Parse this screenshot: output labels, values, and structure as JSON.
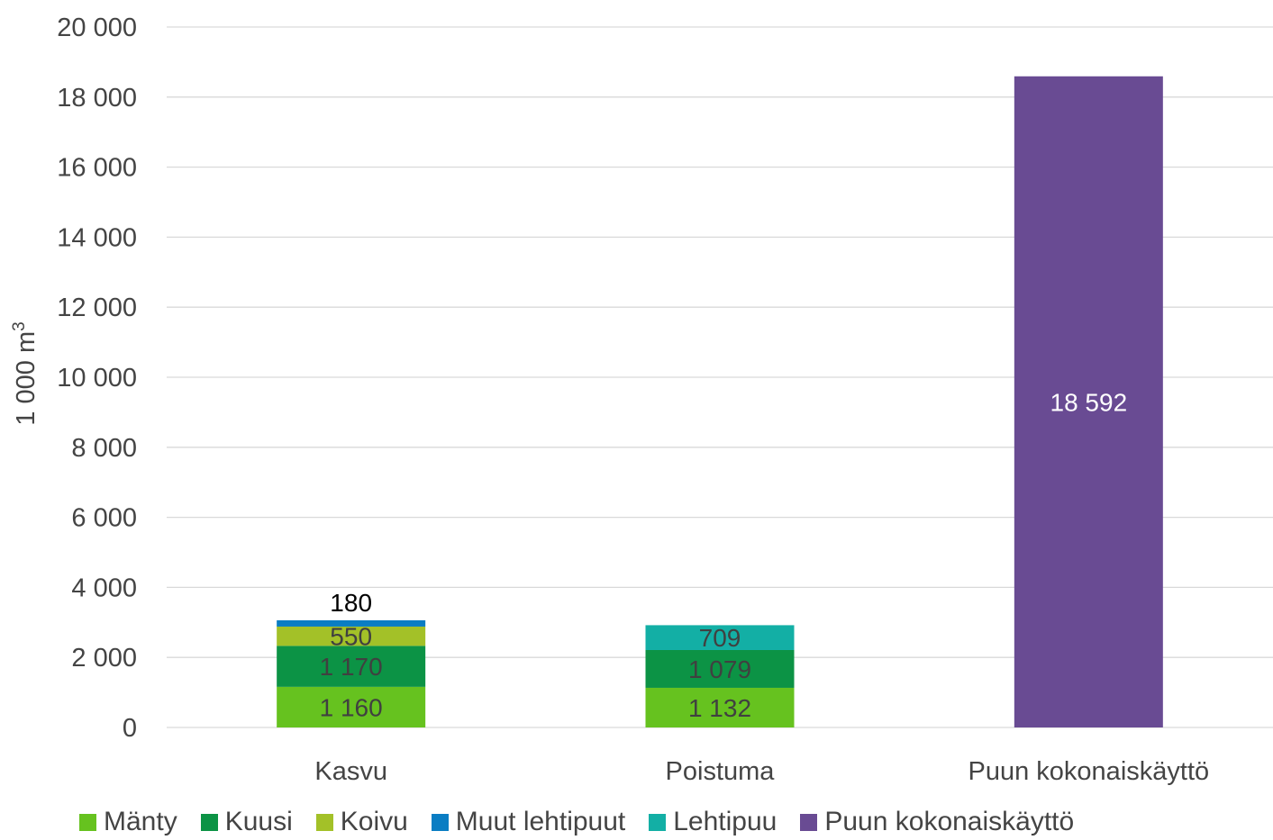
{
  "chart_data": {
    "type": "bar",
    "stacked": true,
    "ylabel": "1 000 m",
    "ylabel_superscript": "3",
    "ylim": [
      0,
      20000
    ],
    "y_ticks": [
      0,
      2000,
      4000,
      6000,
      8000,
      10000,
      12000,
      14000,
      16000,
      18000,
      20000
    ],
    "y_tick_labels": [
      "0",
      "2 000",
      "4 000",
      "6 000",
      "8 000",
      "10 000",
      "12 000",
      "14 000",
      "16 000",
      "18 000",
      "20 000"
    ],
    "grid": true,
    "legend_position": "bottom",
    "categories": [
      "Kasvu",
      "Poistuma",
      "Puun kokonaiskäyttö"
    ],
    "series": [
      {
        "name": "Mänty",
        "color": "#66c21f",
        "values": [
          1160,
          1132,
          0
        ],
        "labels": [
          "1 160",
          "1 132",
          ""
        ],
        "label_color": "#404040"
      },
      {
        "name": "Kuusi",
        "color": "#0c9345",
        "values": [
          1170,
          1079,
          0
        ],
        "labels": [
          "1 170",
          "1 079",
          ""
        ],
        "label_color": "#404040"
      },
      {
        "name": "Koivu",
        "color": "#a3c128",
        "values": [
          550,
          0,
          0
        ],
        "labels": [
          "550",
          "",
          ""
        ],
        "label_color": "#404040"
      },
      {
        "name": "Muut lehtipuut",
        "color": "#0a7dc3",
        "values": [
          180,
          0,
          0
        ],
        "labels": [
          "180",
          "",
          ""
        ],
        "label_color": "#000000",
        "label_above": true
      },
      {
        "name": "Lehtipuu",
        "color": "#13afa5",
        "values": [
          0,
          709,
          0
        ],
        "labels": [
          "",
          "709",
          ""
        ],
        "label_color": "#404040"
      },
      {
        "name": "Puun kokonaiskäyttö",
        "color": "#694b93",
        "values": [
          0,
          0,
          18592
        ],
        "labels": [
          "",
          "",
          "18 592"
        ],
        "label_color": "#ffffff"
      }
    ]
  }
}
